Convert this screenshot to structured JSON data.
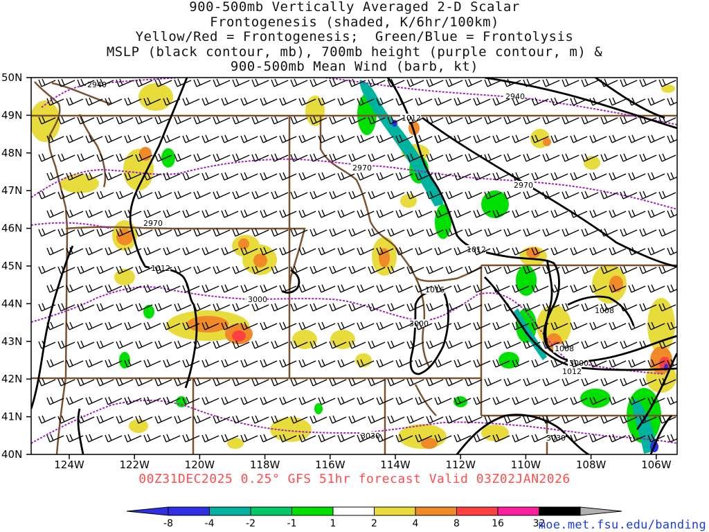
{
  "title_lines": [
    "900-500mb Vertically Averaged 2-D Scalar",
    "Frontogenesis (shaded, K/6hr/100km)",
    "Yellow/Red = Frontogenesis;  Green/Blue = Frontolysis",
    "MSLP (black contour, mb), 700mb height (purple contour, m) &",
    "900-500mb Mean Wind (barb, kt)"
  ],
  "forecast_label": "00Z31DEC2025 0.25° GFS 51hr forecast Valid 03Z02JAN2026",
  "credit": "moe.met.fsu.edu/banding",
  "lat_labels": [
    "50N",
    "49N",
    "48N",
    "47N",
    "46N",
    "45N",
    "44N",
    "43N",
    "42N",
    "41N",
    "40N"
  ],
  "lon_labels": [
    "124W",
    "122W",
    "120W",
    "118W",
    "116W",
    "114W",
    "112W",
    "110W",
    "108W",
    "106W"
  ],
  "colorbar": {
    "labels": [
      "-8",
      "-4",
      "-2",
      "-1",
      "1",
      "2",
      "4",
      "8",
      "16",
      "32"
    ],
    "colors": [
      "#2f2fe6",
      "#00b2a0",
      "#00c864",
      "#00e000",
      "#ffffff",
      "#e8dc3c",
      "#f08a28",
      "#ff4040",
      "#ff20a0",
      "#000000"
    ],
    "left_arrow_color": "#2f2fe6",
    "right_arrow_color": "#b0b0b0"
  },
  "contour_labels": {
    "mslp": [
      "1012",
      "1012",
      "1016",
      "1008",
      "1008",
      "1012",
      "1012"
    ],
    "height_700mb": [
      "2940",
      "2940",
      "2970",
      "2970",
      "2970",
      "3000",
      "3000",
      "3000",
      "3030",
      "3030"
    ]
  },
  "colors": {
    "border": "#7a5230",
    "mslp": "#000000",
    "height": "#a020c0",
    "frontogenesis_weak": "#e8dc3c",
    "frontogenesis_mid": "#f08a28",
    "frontogenesis_strong": "#ff4040",
    "frontolysis_weak": "#00e000",
    "frontolysis_mid": "#00c864",
    "frontolysis_strong": "#00b2a0"
  }
}
